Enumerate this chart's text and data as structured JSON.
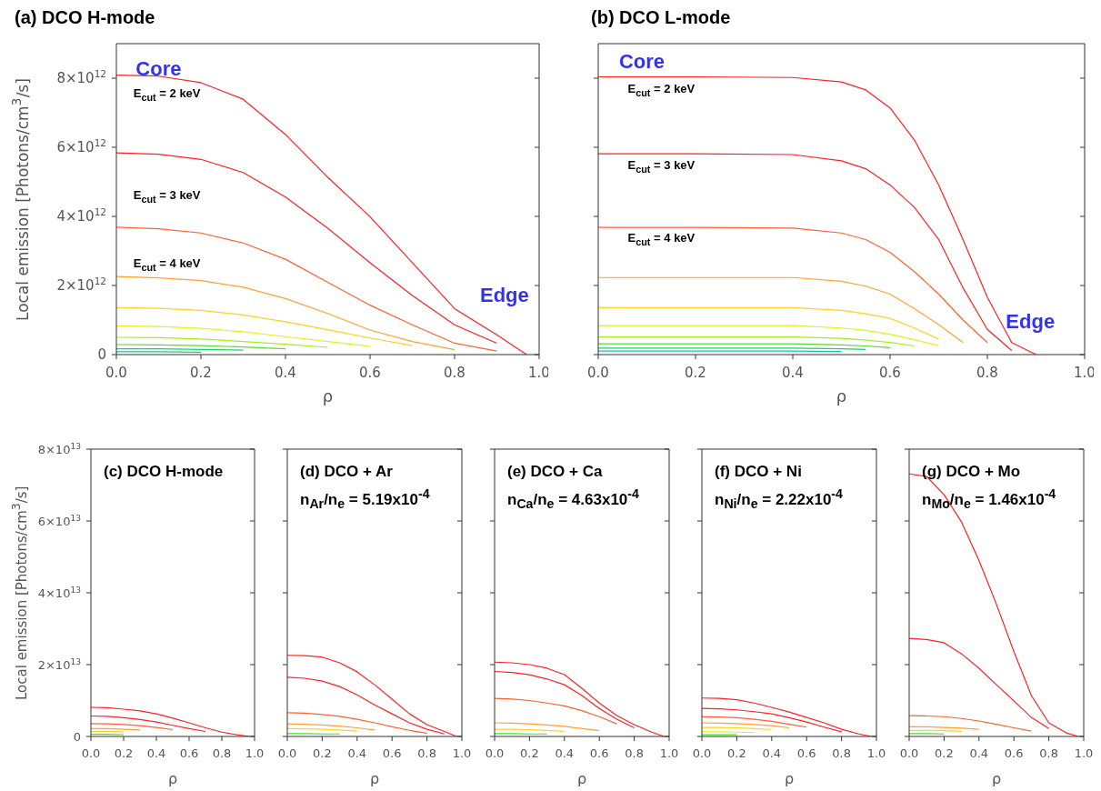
{
  "chart_data": [
    {
      "type": "line",
      "title": "(a) DCO H-mode",
      "xlabel": "ρ",
      "ylabel": "Local emission  [Photons/cm$^{3}$/s]",
      "xlim": [
        0,
        1
      ],
      "xticks": [
        {
          "value": 0,
          "label": "0.0"
        },
        {
          "value": 0.2,
          "label": "0.2"
        },
        {
          "value": 0.4,
          "label": "0.4"
        },
        {
          "value": 0.6,
          "label": "0.6"
        },
        {
          "value": 0.8,
          "label": "0.8"
        },
        {
          "value": 1,
          "label": "1.0"
        }
      ],
      "ylim": [
        0,
        9000000000000.0
      ],
      "yticks": [
        0,
        {
          "value": 2000000000000.0,
          "label": "2×10$^{12}$"
        },
        {
          "value": 4000000000000.0,
          "label": "4×10$^{12}$"
        },
        {
          "value": 6000000000000.0,
          "label": "6×10$^{12}$"
        },
        {
          "value": 8000000000000.0,
          "label": "8×10$^{12}$"
        }
      ],
      "annotations": [
        "Core",
        "Edge",
        "E$_{cut}$ = 2 keV",
        "E$_{cut}$ = 3 keV",
        "E$_{cut}$ = 4 keV"
      ],
      "x": [
        0,
        0.1,
        0.2,
        0.3,
        0.4,
        0.5,
        0.6,
        0.7,
        0.8,
        0.9,
        0.97
      ],
      "series": [
        {
          "color": "#ff2020",
          "values": [
            8090000000000.0,
            8060000000000.0,
            7870000000000.0,
            7390000000000.0,
            6370000000000.0,
            5130000000000.0,
            3990000000000.0,
            2660000000000.0,
            1330000000000.0,
            570000000000.0,
            0
          ]
        },
        {
          "color": "#ff2020",
          "values": [
            5840000000000.0,
            5800000000000.0,
            5650000000000.0,
            5270000000000.0,
            4560000000000.0,
            3660000000000.0,
            2660000000000.0,
            1710000000000.0,
            860000000000.0,
            330000000000.0,
            null
          ]
        },
        {
          "color": "#ff6030",
          "values": [
            3690000000000.0,
            3640000000000.0,
            3520000000000.0,
            3230000000000.0,
            2760000000000.0,
            2090000000000.0,
            1430000000000.0,
            860000000000.0,
            330000000000.0,
            100000000000.0,
            null
          ]
        },
        {
          "color": "#ffa030",
          "values": [
            2260000000000.0,
            2220000000000.0,
            2140000000000.0,
            1950000000000.0,
            1620000000000.0,
            1190000000000.0,
            710000000000.0,
            380000000000.0,
            140000000000.0,
            null,
            null
          ]
        },
        {
          "color": "#ffd020",
          "values": [
            1360000000000.0,
            1340000000000.0,
            1280000000000.0,
            1150000000000.0,
            950000000000.0,
            720000000000.0,
            480000000000.0,
            260000000000.0,
            null,
            null,
            null
          ]
        },
        {
          "color": "#e0f020",
          "values": [
            830000000000.0,
            810000000000.0,
            760000000000.0,
            660000000000.0,
            520000000000.0,
            380000000000.0,
            240000000000.0,
            null,
            null,
            null,
            null
          ]
        },
        {
          "color": "#a0f020",
          "values": [
            500000000000.0,
            490000000000.0,
            450000000000.0,
            380000000000.0,
            300000000000.0,
            210000000000.0,
            null,
            null,
            null,
            null,
            null
          ]
        },
        {
          "color": "#50e030",
          "values": [
            290000000000.0,
            280000000000.0,
            260000000000.0,
            220000000000.0,
            170000000000.0,
            null,
            null,
            null,
            null,
            null,
            null
          ]
        },
        {
          "color": "#20d060",
          "values": [
            170000000000.0,
            170000000000.0,
            150000000000.0,
            130000000000.0,
            null,
            null,
            null,
            null,
            null,
            null,
            null
          ]
        },
        {
          "color": "#20c0a0",
          "values": [
            80000000000.0,
            80000000000.0,
            70000000000.0,
            null,
            null,
            null,
            null,
            null,
            null,
            null,
            null
          ]
        }
      ]
    },
    {
      "type": "line",
      "title": "(b) DCO L-mode",
      "xlabel": "ρ",
      "xlim": [
        0,
        1
      ],
      "xticks": [
        {
          "value": 0,
          "label": "0.0"
        },
        {
          "value": 0.2,
          "label": "0.2"
        },
        {
          "value": 0.4,
          "label": "0.4"
        },
        {
          "value": 0.6,
          "label": "0.6"
        },
        {
          "value": 0.8,
          "label": "0.8"
        },
        {
          "value": 1,
          "label": "1.0"
        }
      ],
      "ylim": [
        0,
        9000000000000.0
      ],
      "yticks": [
        0,
        2000000000000.0,
        4000000000000.0,
        6000000000000.0,
        8000000000000.0
      ],
      "tick_labels": "x",
      "annotations": [
        "Core",
        "Edge",
        "E$_{cut}$ = 2 keV",
        "E$_{cut}$ = 3 keV",
        "E$_{cut}$ = 4 keV"
      ],
      "x": [
        0,
        0.2,
        0.4,
        0.5,
        0.55,
        0.6,
        0.65,
        0.7,
        0.75,
        0.8,
        0.85,
        0.9
      ],
      "series": [
        {
          "color": "#ff2020",
          "values": [
            8040000000000.0,
            8040000000000.0,
            8020000000000.0,
            7890000000000.0,
            7660000000000.0,
            7140000000000.0,
            6210000000000.0,
            4910000000000.0,
            3330000000000.0,
            1660000000000.0,
            350000000000.0,
            0
          ]
        },
        {
          "color": "#ff2020",
          "values": [
            5810000000000.0,
            5810000000000.0,
            5790000000000.0,
            5610000000000.0,
            5380000000000.0,
            4910000000000.0,
            4260000000000.0,
            3330000000000.0,
            1930000000000.0,
            730000000000.0,
            120000000000.0,
            null
          ]
        },
        {
          "color": "#ff6030",
          "values": [
            3680000000000.0,
            3680000000000.0,
            3660000000000.0,
            3520000000000.0,
            3330000000000.0,
            2960000000000.0,
            2400000000000.0,
            1750000000000.0,
            1000000000000.0,
            350000000000.0,
            null,
            null
          ]
        },
        {
          "color": "#ffa030",
          "values": [
            2230000000000.0,
            2230000000000.0,
            2230000000000.0,
            2120000000000.0,
            1980000000000.0,
            1750000000000.0,
            1330000000000.0,
            870000000000.0,
            350000000000.0,
            null,
            null,
            null
          ]
        },
        {
          "color": "#ffd020",
          "values": [
            1360000000000.0,
            1360000000000.0,
            1360000000000.0,
            1280000000000.0,
            1180000000000.0,
            1050000000000.0,
            770000000000.0,
            450000000000.0,
            null,
            null,
            null,
            null
          ]
        },
        {
          "color": "#e0f020",
          "values": [
            840000000000.0,
            840000000000.0,
            840000000000.0,
            770000000000.0,
            700000000000.0,
            590000000000.0,
            430000000000.0,
            260000000000.0,
            null,
            null,
            null,
            null
          ]
        },
        {
          "color": "#a0f020",
          "values": [
            510000000000.0,
            510000000000.0,
            510000000000.0,
            470000000000.0,
            420000000000.0,
            350000000000.0,
            250000000000.0,
            null,
            null,
            null,
            null,
            null
          ]
        },
        {
          "color": "#50e030",
          "values": [
            310000000000.0,
            310000000000.0,
            310000000000.0,
            280000000000.0,
            250000000000.0,
            200000000000.0,
            null,
            null,
            null,
            null,
            null,
            null
          ]
        },
        {
          "color": "#20d060",
          "values": [
            190000000000.0,
            190000000000.0,
            190000000000.0,
            170000000000.0,
            150000000000.0,
            null,
            null,
            null,
            null,
            null,
            null,
            null
          ]
        },
        {
          "color": "#20c0a0",
          "values": [
            100000000000.0,
            100000000000.0,
            100000000000.0,
            90000000000.0,
            null,
            null,
            null,
            null,
            null,
            null,
            null,
            null
          ]
        }
      ]
    },
    {
      "type": "line",
      "title": "(c) DCO H-mode",
      "xlabel": "ρ",
      "ylabel": "Local emission  [Photons/cm$^{3}$/s]",
      "xlim": [
        0,
        1
      ],
      "xticks": [
        {
          "value": 0,
          "label": "0.0"
        },
        {
          "value": 0.2,
          "label": "0.2"
        },
        {
          "value": 0.4,
          "label": "0.4"
        },
        {
          "value": 0.6,
          "label": "0.6"
        },
        {
          "value": 0.8,
          "label": "0.8"
        },
        {
          "value": 1,
          "label": "1.0"
        }
      ],
      "ylim": [
        0,
        80000000000000.0
      ],
      "yticks": [
        0,
        {
          "value": 20000000000000.0,
          "label": "2×10$^{13}$"
        },
        {
          "value": 40000000000000.0,
          "label": "4×10$^{13}$"
        },
        {
          "value": 60000000000000.0,
          "label": "6×10$^{13}$"
        },
        {
          "value": 80000000000000.0,
          "label": "8×10$^{13}$"
        }
      ],
      "x": [
        0,
        0.1,
        0.2,
        0.3,
        0.4,
        0.5,
        0.6,
        0.7,
        0.8,
        0.9,
        0.97
      ],
      "series": [
        {
          "color": "#ff2020",
          "values": [
            8100000000000.0,
            8000000000000.0,
            7600000000000.0,
            7100000000000.0,
            6300000000000.0,
            5100000000000.0,
            3800000000000.0,
            2400000000000.0,
            1200000000000.0,
            400000000000.0,
            0
          ]
        },
        {
          "color": "#ff2020",
          "values": [
            5700000000000.0,
            5600000000000.0,
            5200000000000.0,
            4700000000000.0,
            4000000000000.0,
            3100000000000.0,
            2200000000000.0,
            1400000000000.0,
            null,
            null,
            null
          ]
        },
        {
          "color": "#ff6030",
          "values": [
            3600000000000.0,
            3500000000000.0,
            3300000000000.0,
            3000000000000.0,
            2500000000000.0,
            1900000000000.0,
            null,
            null,
            null,
            null,
            null
          ]
        },
        {
          "color": "#ffa030",
          "values": [
            2200000000000.0,
            2200000000000.0,
            2000000000000.0,
            1800000000000.0,
            null,
            null,
            null,
            null,
            null,
            null,
            null
          ]
        },
        {
          "color": "#ffd020",
          "values": [
            1400000000000.0,
            1400000000000.0,
            1300000000000.0,
            null,
            null,
            null,
            null,
            null,
            null,
            null,
            null
          ]
        },
        {
          "color": "#40e020",
          "values": [
            600000000000.0,
            600000000000.0,
            500000000000.0,
            null,
            null,
            null,
            null,
            null,
            null,
            null,
            null
          ]
        }
      ]
    },
    {
      "type": "line",
      "title": "(d) DCO + Ar",
      "subtitle": "n$_{Ar}$/n$_{e}$ = 5.19x10$^{-4}$",
      "xlabel": "ρ",
      "xlim": [
        0,
        1
      ],
      "xticks": [
        {
          "value": 0,
          "label": "0.0"
        },
        {
          "value": 0.2,
          "label": "0.2"
        },
        {
          "value": 0.4,
          "label": "0.4"
        },
        {
          "value": 0.6,
          "label": "0.6"
        },
        {
          "value": 0.8,
          "label": "0.8"
        },
        {
          "value": 1,
          "label": "1.0"
        }
      ],
      "ylim": [
        0,
        80000000000000.0
      ],
      "yticks": [
        0,
        20000000000000.0,
        40000000000000.0,
        60000000000000.0,
        80000000000000.0
      ],
      "tick_labels": "x",
      "x": [
        0,
        0.1,
        0.2,
        0.3,
        0.4,
        0.5,
        0.6,
        0.7,
        0.8,
        0.9,
        0.97
      ],
      "series": [
        {
          "color": "#ff2020",
          "values": [
            22600000000000.0,
            22500000000000.0,
            22100000000000.0,
            20500000000000.0,
            18000000000000.0,
            14400000000000.0,
            10400000000000.0,
            6300000000000.0,
            3300000000000.0,
            1400000000000.0,
            0
          ]
        },
        {
          "color": "#ff2020",
          "values": [
            16500000000000.0,
            16200000000000.0,
            15400000000000.0,
            13900000000000.0,
            11600000000000.0,
            8800000000000.0,
            6300000000000.0,
            3800000000000.0,
            2000000000000.0,
            700000000000.0,
            null
          ]
        },
        {
          "color": "#ff6030",
          "values": [
            6600000000000.0,
            6500000000000.0,
            6100000000000.0,
            5600000000000.0,
            4800000000000.0,
            3800000000000.0,
            2700000000000.0,
            1700000000000.0,
            900000000000.0,
            null,
            null
          ]
        },
        {
          "color": "#ffa030",
          "values": [
            3500000000000.0,
            3400000000000.0,
            3200000000000.0,
            2900000000000.0,
            2400000000000.0,
            1800000000000.0,
            null,
            null,
            null,
            null,
            null
          ]
        },
        {
          "color": "#ffd020",
          "values": [
            2200000000000.0,
            2100000000000.0,
            2000000000000.0,
            1800000000000.0,
            1500000000000.0,
            null,
            null,
            null,
            null,
            null,
            null
          ]
        },
        {
          "color": "#40e020",
          "values": [
            800000000000.0,
            800000000000.0,
            700000000000.0,
            700000000000.0,
            null,
            null,
            null,
            null,
            null,
            null,
            null
          ]
        }
      ]
    },
    {
      "type": "line",
      "title": "(e) DCO + Ca",
      "subtitle": "n$_{Ca}$/n$_{e}$ = 4.63x10$^{-4}$",
      "xlabel": "ρ",
      "xlim": [
        0,
        1
      ],
      "xticks": [
        {
          "value": 0,
          "label": "0.0"
        },
        {
          "value": 0.2,
          "label": "0.2"
        },
        {
          "value": 0.4,
          "label": "0.4"
        },
        {
          "value": 0.6,
          "label": "0.6"
        },
        {
          "value": 0.8,
          "label": "0.8"
        },
        {
          "value": 1,
          "label": "1.0"
        }
      ],
      "ylim": [
        0,
        80000000000000.0
      ],
      "yticks": [
        0,
        20000000000000.0,
        40000000000000.0,
        60000000000000.0,
        80000000000000.0
      ],
      "tick_labels": "x",
      "x": [
        0,
        0.1,
        0.2,
        0.3,
        0.4,
        0.5,
        0.6,
        0.7,
        0.8,
        0.9,
        0.97
      ],
      "series": [
        {
          "color": "#ff2020",
          "values": [
            20700000000000.0,
            20500000000000.0,
            20000000000000.0,
            19000000000000.0,
            17200000000000.0,
            13400000000000.0,
            9300000000000.0,
            5800000000000.0,
            3300000000000.0,
            1200000000000.0,
            0
          ]
        },
        {
          "color": "#ff2020",
          "values": [
            18100000000000.0,
            17800000000000.0,
            17200000000000.0,
            16000000000000.0,
            14400000000000.0,
            11400000000000.0,
            7800000000000.0,
            4800000000000.0,
            2400000000000.0,
            null,
            null
          ]
        },
        {
          "color": "#ff6030",
          "values": [
            10600000000000.0,
            10400000000000.0,
            10000000000000.0,
            9300000000000.0,
            8500000000000.0,
            7200000000000.0,
            5500000000000.0,
            3500000000000.0,
            null,
            null,
            null
          ]
        },
        {
          "color": "#ffa030",
          "values": [
            3800000000000.0,
            3700000000000.0,
            3500000000000.0,
            3200000000000.0,
            2800000000000.0,
            2200000000000.0,
            1600000000000.0,
            null,
            null,
            null,
            null
          ]
        },
        {
          "color": "#ffd020",
          "values": [
            2000000000000.0,
            2000000000000.0,
            1900000000000.0,
            1700000000000.0,
            1400000000000.0,
            null,
            null,
            null,
            null,
            null,
            null
          ]
        },
        {
          "color": "#40e020",
          "values": [
            800000000000.0,
            800000000000.0,
            700000000000.0,
            700000000000.0,
            null,
            null,
            null,
            null,
            null,
            null,
            null
          ]
        }
      ]
    },
    {
      "type": "line",
      "title": "(f) DCO + Ni",
      "subtitle": "n$_{Ni}$/n$_{e}$ = 2.22x10$^{-4}$",
      "xlabel": "ρ",
      "xlim": [
        0,
        1
      ],
      "xticks": [
        {
          "value": 0,
          "label": "0.0"
        },
        {
          "value": 0.2,
          "label": "0.2"
        },
        {
          "value": 0.4,
          "label": "0.4"
        },
        {
          "value": 0.6,
          "label": "0.6"
        },
        {
          "value": 0.8,
          "label": "0.8"
        },
        {
          "value": 1,
          "label": "1.0"
        }
      ],
      "ylim": [
        0,
        80000000000000.0
      ],
      "yticks": [
        0,
        20000000000000.0,
        40000000000000.0,
        60000000000000.0,
        80000000000000.0
      ],
      "tick_labels": "x",
      "x": [
        0,
        0.1,
        0.2,
        0.3,
        0.4,
        0.5,
        0.6,
        0.7,
        0.8,
        0.9,
        0.97
      ],
      "series": [
        {
          "color": "#ff2020",
          "values": [
            10700000000000.0,
            10600000000000.0,
            10200000000000.0,
            9300000000000.0,
            8100000000000.0,
            6800000000000.0,
            5300000000000.0,
            3800000000000.0,
            2000000000000.0,
            700000000000.0,
            0
          ]
        },
        {
          "color": "#ff2020",
          "values": [
            7800000000000.0,
            7700000000000.0,
            7400000000000.0,
            6900000000000.0,
            6300000000000.0,
            5200000000000.0,
            4000000000000.0,
            2600000000000.0,
            1300000000000.0,
            null,
            null
          ]
        },
        {
          "color": "#ff6030",
          "values": [
            5500000000000.0,
            5400000000000.0,
            5200000000000.0,
            4800000000000.0,
            4200000000000.0,
            3400000000000.0,
            2600000000000.0,
            null,
            null,
            null,
            null
          ]
        },
        {
          "color": "#ffa030",
          "values": [
            3800000000000.0,
            3700000000000.0,
            3600000000000.0,
            3300000000000.0,
            3000000000000.0,
            2400000000000.0,
            null,
            null,
            null,
            null,
            null
          ]
        },
        {
          "color": "#ffd020",
          "values": [
            2500000000000.0,
            2500000000000.0,
            2400000000000.0,
            2200000000000.0,
            1900000000000.0,
            null,
            null,
            null,
            null,
            null,
            null
          ]
        },
        {
          "color": "#e0f020",
          "values": [
            1300000000000.0,
            1300000000000.0,
            1200000000000.0,
            1100000000000.0,
            null,
            null,
            null,
            null,
            null,
            null,
            null
          ]
        },
        {
          "color": "#40e020",
          "values": [
            500000000000.0,
            500000000000.0,
            500000000000.0,
            null,
            null,
            null,
            null,
            null,
            null,
            null,
            null
          ]
        }
      ]
    },
    {
      "type": "line",
      "title": "(g) DCO + Mo",
      "subtitle": "n$_{Mo}$/n$_{e}$ = 1.46x10$^{-4}$",
      "xlabel": "ρ",
      "xlim": [
        0,
        1
      ],
      "xticks": [
        {
          "value": 0,
          "label": "0.0"
        },
        {
          "value": 0.2,
          "label": "0.2"
        },
        {
          "value": 0.4,
          "label": "0.4"
        },
        {
          "value": 0.6,
          "label": "0.6"
        },
        {
          "value": 0.8,
          "label": "0.8"
        },
        {
          "value": 1,
          "label": "1.0"
        }
      ],
      "ylim": [
        0,
        80000000000000.0
      ],
      "yticks": [
        0,
        20000000000000.0,
        40000000000000.0,
        60000000000000.0,
        80000000000000.0
      ],
      "tick_labels": "x",
      "x": [
        0,
        0.1,
        0.2,
        0.3,
        0.4,
        0.5,
        0.6,
        0.7,
        0.8,
        0.9,
        0.97
      ],
      "series": [
        {
          "color": "#ff2020",
          "values": [
            73100000000000.0,
            72400000000000.0,
            67300000000000.0,
            59700000000000.0,
            49000000000000.0,
            36800000000000.0,
            23600000000000.0,
            11400000000000.0,
            3800000000000.0,
            1000000000000.0,
            0
          ]
        },
        {
          "color": "#ff2020",
          "values": [
            27300000000000.0,
            27000000000000.0,
            26100000000000.0,
            23000000000000.0,
            19000000000000.0,
            14400000000000.0,
            9900000000000.0,
            5300000000000.0,
            2200000000000.0,
            null,
            null
          ]
        },
        {
          "color": "#ff6030",
          "values": [
            5800000000000.0,
            5700000000000.0,
            5500000000000.0,
            5000000000000.0,
            4300000000000.0,
            3400000000000.0,
            2400000000000.0,
            1500000000000.0,
            null,
            null,
            null
          ]
        },
        {
          "color": "#ffa030",
          "values": [
            2700000000000.0,
            2700000000000.0,
            2500000000000.0,
            2300000000000.0,
            2000000000000.0,
            null,
            null,
            null,
            null,
            null,
            null
          ]
        },
        {
          "color": "#ffd020",
          "values": [
            1700000000000.0,
            1700000000000.0,
            1600000000000.0,
            1400000000000.0,
            null,
            null,
            null,
            null,
            null,
            null,
            null
          ]
        },
        {
          "color": "#40e020",
          "values": [
            800000000000.0,
            800000000000.0,
            700000000000.0,
            null,
            null,
            null,
            null,
            null,
            null,
            null,
            null
          ]
        }
      ]
    }
  ]
}
